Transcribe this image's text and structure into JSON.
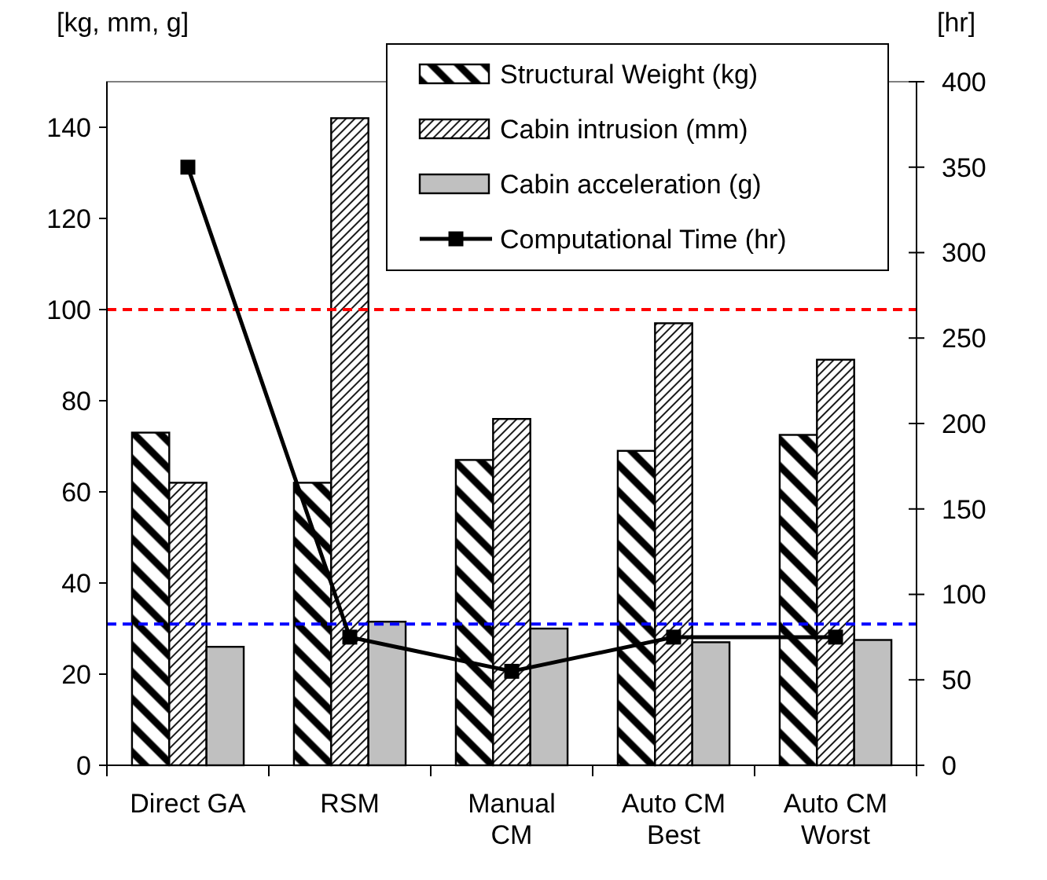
{
  "chart_data": {
    "type": "bar",
    "categories": [
      "Direct GA",
      "RSM",
      "Manual\nCM",
      "Auto CM\nBest",
      "Auto CM\nWorst"
    ],
    "ylabel": "[kg, mm, g]",
    "y2label": "[hr]",
    "ylim": [
      0,
      150
    ],
    "yticks": [
      0,
      20,
      40,
      60,
      80,
      100,
      120,
      140
    ],
    "y2lim": [
      0,
      400
    ],
    "y2ticks": [
      0,
      50,
      100,
      150,
      200,
      250,
      300,
      350,
      400
    ],
    "series": [
      {
        "name": "Structural Weight (kg)",
        "color": "#000000",
        "values": [
          73,
          62,
          67,
          69,
          72.5
        ]
      },
      {
        "name": "Cabin intrusion (mm)",
        "color": "#000000",
        "values": [
          62,
          142,
          76,
          97,
          89
        ]
      },
      {
        "name": "Cabin acceleration (g)",
        "color": "#c0c0c0",
        "values": [
          26,
          31.5,
          30,
          27,
          27.5
        ]
      },
      {
        "name": "Computational Time (hr)",
        "type": "line",
        "axis": "y2",
        "color": "#000000",
        "marker": "square",
        "values": [
          350,
          75,
          55,
          75,
          75
        ]
      }
    ],
    "ref_lines": [
      {
        "axis": "y",
        "value": 100,
        "color": "#ff0000",
        "line_style": "dashed"
      },
      {
        "axis": "y",
        "value": 31,
        "color": "#0000ff",
        "line_style": "dashed"
      }
    ],
    "grid": false,
    "legend": "top right"
  }
}
